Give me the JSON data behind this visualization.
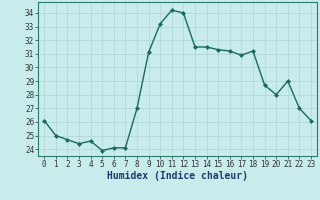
{
  "x": [
    0,
    1,
    2,
    3,
    4,
    5,
    6,
    7,
    8,
    9,
    10,
    11,
    12,
    13,
    14,
    15,
    16,
    17,
    18,
    19,
    20,
    21,
    22,
    23
  ],
  "y": [
    26.1,
    25.0,
    24.7,
    24.4,
    24.6,
    23.9,
    24.1,
    24.1,
    27.0,
    31.1,
    33.2,
    34.2,
    34.0,
    31.5,
    31.5,
    31.3,
    31.2,
    30.9,
    31.2,
    28.7,
    28.0,
    29.0,
    27.0,
    26.1
  ],
  "line_color": "#1a6b5a",
  "bg_color": "#c8ecec",
  "grid_color": "#b0d4d4",
  "xlabel": "Humidex (Indice chaleur)",
  "ylabel_ticks": [
    24,
    25,
    26,
    27,
    28,
    29,
    30,
    31,
    32,
    33,
    34
  ],
  "xlim": [
    -0.5,
    23.5
  ],
  "ylim": [
    23.5,
    34.8
  ],
  "marker": "D",
  "marker_size": 2.0,
  "line_width": 1.0,
  "tick_fontsize": 5.5,
  "xlabel_fontsize": 7.0
}
